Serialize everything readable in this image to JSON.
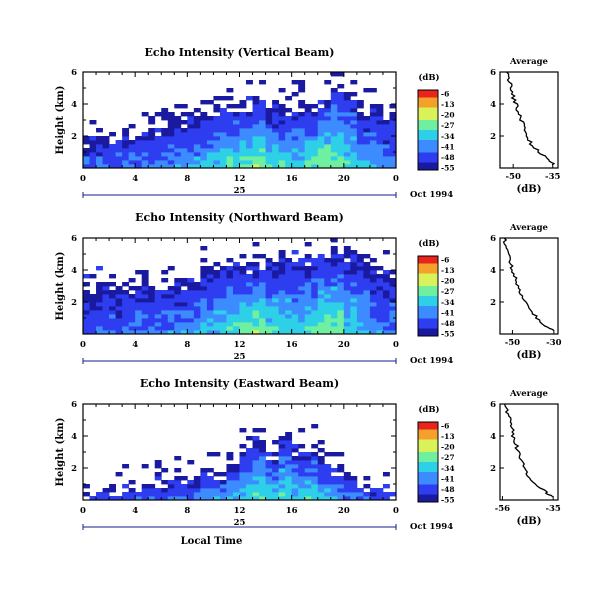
{
  "chart_data": [
    {
      "type": "heatmap",
      "title": "Echo Intensity (Vertical Beam)",
      "ylabel": "Height (km)",
      "xlabel": "",
      "x_ticks": [
        "0",
        "4",
        "8",
        "12",
        "16",
        "20",
        "0"
      ],
      "y_ticks": [
        "2",
        "4",
        "6"
      ],
      "xlim": [
        0,
        24
      ],
      "ylim": [
        0,
        6
      ],
      "date_mark": "25",
      "date_label": "Oct 1994",
      "colorbar": {
        "unit": "(dB)",
        "levels": [
          "-6",
          "-13",
          "-20",
          "-27",
          "-34",
          "-41",
          "-48",
          "-55"
        ]
      },
      "echo_top_km": [
        1.9,
        2.1,
        2.2,
        2.3,
        2.5,
        2.6,
        2.8,
        3.0,
        3.2,
        3.6,
        3.8,
        4.0,
        4.2,
        4.5,
        3.6,
        3.9,
        4.2,
        3.9,
        4.4,
        5.2,
        4.8,
        3.8,
        4.1,
        3.2
      ],
      "peak_intensity_db": [
        -44,
        -43,
        -42,
        -41,
        -42,
        -40,
        -39,
        -38,
        -37,
        -34,
        -32,
        -29,
        -27,
        -24,
        -30,
        -31,
        -33,
        -28,
        -22,
        -24,
        -30,
        -36,
        -38,
        -41
      ],
      "profile": {
        "title": "Average",
        "xlabel": "(dB)",
        "x_ticks": [
          "-50",
          "-35"
        ],
        "y_ticks": [
          "2",
          "4",
          "6"
        ],
        "xlim": [
          -55,
          -33
        ],
        "height_km": [
          0.2,
          0.5,
          1.0,
          1.5,
          2.0,
          2.5,
          3.0,
          3.5,
          4.0,
          4.5,
          5.0,
          5.5,
          6.0
        ],
        "mean_db": [
          -34.5,
          -37,
          -40,
          -43,
          -44.5,
          -46,
          -47,
          -48,
          -49,
          -50,
          -51,
          -51.5,
          -52.5
        ]
      }
    },
    {
      "type": "heatmap",
      "title": "Echo Intensity (Northward Beam)",
      "ylabel": "Height (km)",
      "xlabel": "",
      "x_ticks": [
        "0",
        "4",
        "8",
        "12",
        "16",
        "20",
        "0"
      ],
      "y_ticks": [
        "2",
        "4",
        "6"
      ],
      "xlim": [
        0,
        24
      ],
      "ylim": [
        0,
        6
      ],
      "date_mark": "25",
      "date_label": "Oct 1994",
      "colorbar": {
        "unit": "(dB)",
        "levels": [
          "-6",
          "-13",
          "-20",
          "-27",
          "-34",
          "-41",
          "-48",
          "-55"
        ]
      },
      "echo_top_km": [
        2.5,
        3.3,
        3.1,
        3.2,
        3.5,
        3.1,
        3.3,
        3.4,
        3.5,
        4.3,
        4.6,
        4.8,
        4.4,
        4.6,
        4.7,
        5.0,
        5.1,
        4.9,
        5.2,
        5.4,
        5.2,
        5.0,
        4.3,
        4.0
      ],
      "peak_intensity_db": [
        -45,
        -44,
        -44,
        -43,
        -42,
        -41,
        -40,
        -39,
        -38,
        -35,
        -33,
        -30,
        -26,
        -24,
        -29,
        -31,
        -33,
        -29,
        -23,
        -26,
        -31,
        -36,
        -39,
        -42
      ],
      "profile": {
        "title": "Average",
        "xlabel": "(dB)",
        "x_ticks": [
          "-50",
          "-30"
        ],
        "y_ticks": [
          "2",
          "4",
          "6"
        ],
        "xlim": [
          -56,
          -28
        ],
        "height_km": [
          0.2,
          0.5,
          1.0,
          1.5,
          2.0,
          2.5,
          3.0,
          3.5,
          4.0,
          4.5,
          5.0,
          5.5,
          6.0
        ],
        "mean_db": [
          -30,
          -34,
          -38,
          -42,
          -44,
          -46,
          -47.5,
          -48.5,
          -50,
          -51,
          -52,
          -53,
          -54
        ]
      }
    },
    {
      "type": "heatmap",
      "title": "Echo Intensity (Eastward Beam)",
      "ylabel": "Height (km)",
      "xlabel": "Local Time",
      "x_ticks": [
        "0",
        "4",
        "8",
        "12",
        "16",
        "20",
        "0"
      ],
      "y_ticks": [
        "2",
        "4",
        "6"
      ],
      "xlim": [
        0,
        24
      ],
      "ylim": [
        0,
        6
      ],
      "date_mark": "25",
      "date_label": "Oct 1994",
      "colorbar": {
        "unit": "(dB)",
        "levels": [
          "-6",
          "-13",
          "-20",
          "-27",
          "-34",
          "-41",
          "-48",
          "-55"
        ]
      },
      "echo_top_km": [
        0.6,
        0.7,
        0.9,
        1.2,
        1.1,
        1.3,
        1.3,
        1.5,
        1.5,
        1.9,
        1.8,
        2.2,
        3.5,
        3.9,
        3.1,
        4.2,
        3.4,
        3.6,
        2.6,
        2.1,
        1.5,
        1.1,
        0.9,
        0.6
      ],
      "peak_intensity_db": [
        -48,
        -48,
        -47,
        -46,
        -46,
        -45,
        -44,
        -43,
        -42,
        -40,
        -38,
        -35,
        -32,
        -29,
        -31,
        -30,
        -32,
        -31,
        -35,
        -38,
        -41,
        -44,
        -46,
        -48
      ],
      "profile": {
        "title": "Average",
        "xlabel": "(dB)",
        "x_ticks": [
          "-56",
          "-35"
        ],
        "y_ticks": [
          "2",
          "4",
          "6"
        ],
        "xlim": [
          -57,
          -33
        ],
        "height_km": [
          0.2,
          0.5,
          1.0,
          1.5,
          2.0,
          2.5,
          3.0,
          3.5,
          4.0,
          4.5,
          5.0,
          5.5,
          6.0
        ],
        "mean_db": [
          -35,
          -38,
          -43,
          -45.5,
          -47,
          -48.5,
          -49.5,
          -50.5,
          -51.5,
          -52,
          -53,
          -54,
          -55
        ]
      }
    }
  ]
}
